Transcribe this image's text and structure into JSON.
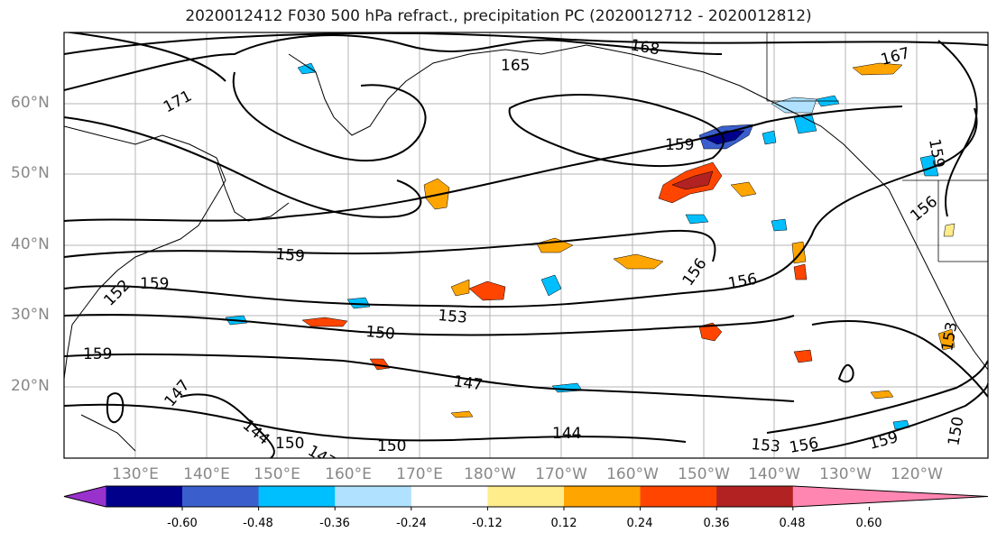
{
  "title": "2020012412 F030 500 hPa refract., precipitation PC (2020012712 - 2020012812)",
  "lat_labels": [
    "60°N",
    "50°N",
    "40°N",
    "30°N",
    "20°N"
  ],
  "lon_labels": [
    "130°E",
    "140°E",
    "150°E",
    "160°E",
    "170°E",
    "180°W",
    "170°W",
    "160°W",
    "150°W",
    "140°W",
    "130°W",
    "120°W"
  ],
  "contour_labels": [
    "171",
    "168",
    "165",
    "167",
    "159",
    "159",
    "156",
    "156",
    "156",
    "159",
    "153",
    "150",
    "147",
    "147",
    "144",
    "144",
    "153",
    "156",
    "159",
    "159",
    "159",
    "153",
    "150",
    "150",
    "147",
    "152",
    "150"
  ],
  "colorbar": {
    "ticks": [
      "-0.60",
      "-0.48",
      "-0.36",
      "-0.24",
      "-0.12",
      "0.12",
      "0.24",
      "0.36",
      "0.48",
      "0.60"
    ],
    "colors": [
      "#9932cc",
      "#00008b",
      "#3a5fcd",
      "#00bfff",
      "#b0e2ff",
      "#ffffff",
      "#ffec8b",
      "#ffa500",
      "#ff4500",
      "#b22222",
      "#ff86b0"
    ]
  }
}
